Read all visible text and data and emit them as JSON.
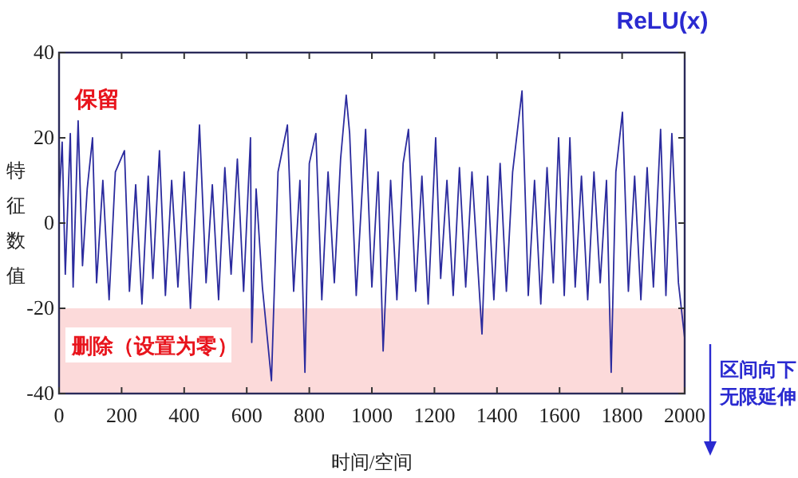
{
  "chart_data": {
    "type": "line",
    "title": "ReLU(x)",
    "xlabel": "时间/空间",
    "ylabel": "特征数值",
    "annotations": [
      "保留",
      "区间向下无限延伸"
    ],
    "xlim": [
      0,
      2000
    ],
    "xticks": [
      0,
      200,
      400,
      600,
      800,
      1000,
      1200,
      1400,
      1600,
      1800,
      2000
    ],
    "ylim": [
      -40,
      40
    ],
    "yticks": [
      -40,
      -20,
      0,
      20,
      40
    ],
    "bands": [
      {
        "axis": "y",
        "from": -40,
        "to": -20,
        "label": "删除（设置为零）",
        "color": "#fcdada"
      }
    ],
    "series": [
      {
        "color": "#2b2b9e",
        "x": [
          0,
          10,
          20,
          36,
          45,
          61,
          75,
          90,
          107,
          120,
          140,
          160,
          180,
          209,
          225,
          245,
          265,
          285,
          300,
          321,
          340,
          360,
          380,
          400,
          420,
          449,
          470,
          490,
          510,
          530,
          550,
          570,
          590,
          612,
          616,
          630,
          650,
          679,
          700,
          730,
          750,
          770,
          786,
          800,
          821,
          840,
          860,
          880,
          900,
          918,
          929,
          950,
          980,
          1000,
          1020,
          1036,
          1060,
          1080,
          1100,
          1117,
          1140,
          1160,
          1180,
          1204,
          1220,
          1240,
          1260,
          1280,
          1300,
          1320,
          1352,
          1370,
          1390,
          1410,
          1430,
          1450,
          1480,
          1500,
          1520,
          1540,
          1560,
          1580,
          1597,
          1615,
          1633,
          1650,
          1670,
          1690,
          1710,
          1730,
          1750,
          1765,
          1780,
          1801,
          1820,
          1840,
          1860,
          1880,
          1900,
          1923,
          1940,
          1959,
          1980,
          2000
        ],
        "values": [
          5,
          19,
          -12,
          21,
          -15,
          24,
          -10,
          8,
          20,
          -14,
          10,
          -18,
          12,
          17,
          -16,
          9,
          -19,
          11,
          -13,
          17,
          -17,
          10,
          -15,
          12,
          -20,
          23,
          -14,
          9,
          -18,
          13,
          -12,
          15,
          -16,
          20,
          -28,
          8,
          -15,
          -37,
          12,
          23,
          -16,
          10,
          -35,
          14,
          21,
          -18,
          12,
          -14,
          15,
          30,
          21,
          -17,
          22,
          -15,
          12,
          -30,
          10,
          -18,
          14,
          22,
          -16,
          11,
          -19,
          20,
          -13,
          10,
          -17,
          13,
          -15,
          12,
          -26,
          11,
          -18,
          14,
          -16,
          12,
          31,
          -17,
          10,
          -19,
          13,
          -14,
          20,
          -17,
          20,
          -15,
          11,
          -18,
          12,
          -14,
          10,
          -35,
          12,
          26,
          -16,
          11,
          -18,
          13,
          -15,
          22,
          -17,
          21,
          -14,
          -27
        ]
      }
    ]
  }
}
